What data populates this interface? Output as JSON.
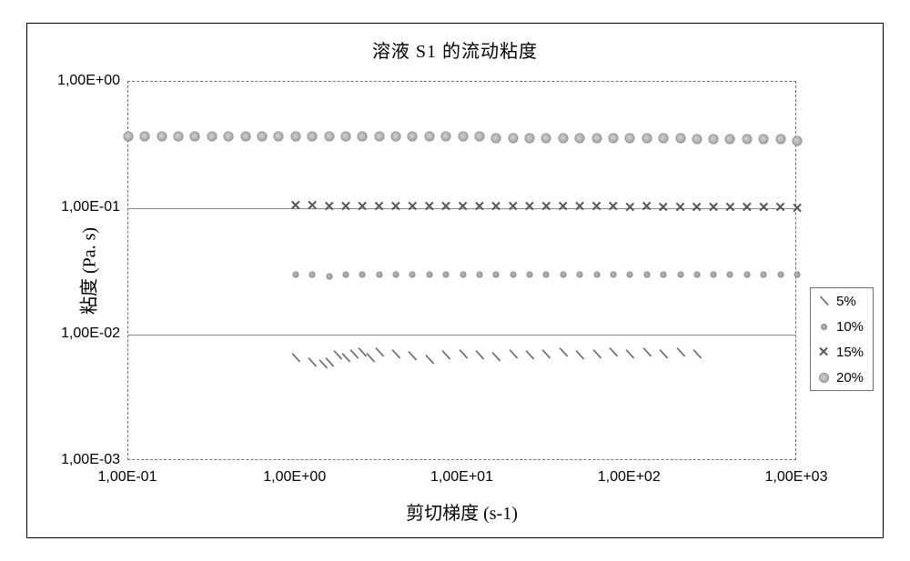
{
  "chart": {
    "type": "scatter",
    "title": "溶液 S1 的流动粘度",
    "title_fontsize": 20,
    "xlabel": "剪切梯度 (s-1)",
    "ylabel": "粘度 (Pa. s)",
    "label_fontsize": 20,
    "tick_fontsize": 16,
    "tick_fontfamily": "Arial",
    "background_color": "#ffffff",
    "frame_border_color": "#000000",
    "plot_border_style": "dashed",
    "plot_border_color": "#6f6f6f",
    "grid_color": "#8a8a8a",
    "x_scale": "log",
    "y_scale": "log",
    "xlim": [
      0.1,
      1000
    ],
    "ylim": [
      0.001,
      1
    ],
    "xticks": [
      {
        "value": 0.1,
        "label": "1,00E-01"
      },
      {
        "value": 1,
        "label": "1,00E+00"
      },
      {
        "value": 10,
        "label": "1,00E+01"
      },
      {
        "value": 100,
        "label": "1,00E+02"
      },
      {
        "value": 1000,
        "label": "1,00E+03"
      }
    ],
    "yticks": [
      {
        "value": 0.001,
        "label": "1,00E-03"
      },
      {
        "value": 0.01,
        "label": "1,00E-02"
      },
      {
        "value": 0.1,
        "label": "1,00E-01"
      },
      {
        "value": 1,
        "label": "1,00E+00"
      }
    ],
    "legend": {
      "position": "right-middle",
      "border_color": "#6f6f6f",
      "items": [
        {
          "key": "s5",
          "label": "5%"
        },
        {
          "key": "s10",
          "label": "10%"
        },
        {
          "key": "s15",
          "label": "15%"
        },
        {
          "key": "s20",
          "label": "20%"
        }
      ]
    },
    "series": {
      "s5": {
        "label": "5%",
        "marker": "tick",
        "marker_color": "#6b6b6b",
        "marker_size": 14,
        "x": [
          1.0,
          1.26,
          1.46,
          1.59,
          1.78,
          2.0,
          2.24,
          2.51,
          2.82,
          3.16,
          3.98,
          5.01,
          6.31,
          7.94,
          10.0,
          12.6,
          15.8,
          20.0,
          25.1,
          31.6,
          39.8,
          50.1,
          63.1,
          79.4,
          100,
          126,
          158,
          200,
          251
        ],
        "y": [
          0.0065,
          0.006,
          0.0058,
          0.006,
          0.0068,
          0.0065,
          0.007,
          0.0072,
          0.0065,
          0.0072,
          0.007,
          0.0067,
          0.0063,
          0.0068,
          0.007,
          0.0068,
          0.0066,
          0.007,
          0.0068,
          0.007,
          0.0072,
          0.0068,
          0.007,
          0.0072,
          0.007,
          0.0072,
          0.007,
          0.0072,
          0.007
        ]
      },
      "s10": {
        "label": "10%",
        "marker": "dot-small",
        "marker_color": "#909090",
        "marker_size": 7,
        "x": [
          1.0,
          1.26,
          1.59,
          2.0,
          2.51,
          3.16,
          3.98,
          5.01,
          6.31,
          7.94,
          10.0,
          12.6,
          15.8,
          20.0,
          25.1,
          31.6,
          39.8,
          50.1,
          63.1,
          79.4,
          100,
          126,
          158,
          200,
          251,
          316,
          398,
          501,
          631,
          794,
          1000
        ],
        "y": [
          0.03,
          0.03,
          0.029,
          0.03,
          0.03,
          0.03,
          0.03,
          0.03,
          0.03,
          0.03,
          0.03,
          0.03,
          0.03,
          0.03,
          0.03,
          0.03,
          0.03,
          0.03,
          0.03,
          0.03,
          0.03,
          0.03,
          0.03,
          0.03,
          0.03,
          0.03,
          0.03,
          0.03,
          0.03,
          0.03,
          0.03
        ]
      },
      "s15": {
        "label": "15%",
        "marker": "x",
        "marker_color": "#585858",
        "marker_size": 15,
        "x": [
          1.0,
          1.26,
          1.59,
          2.0,
          2.51,
          3.16,
          3.98,
          5.01,
          6.31,
          7.94,
          10.0,
          12.6,
          15.8,
          20.0,
          25.1,
          31.6,
          39.8,
          50.1,
          63.1,
          79.4,
          100,
          126,
          158,
          200,
          251,
          316,
          398,
          501,
          631,
          794,
          1000
        ],
        "y": [
          0.105,
          0.105,
          0.103,
          0.104,
          0.104,
          0.103,
          0.104,
          0.103,
          0.104,
          0.103,
          0.103,
          0.104,
          0.103,
          0.103,
          0.103,
          0.103,
          0.103,
          0.103,
          0.103,
          0.103,
          0.102,
          0.103,
          0.102,
          0.102,
          0.102,
          0.102,
          0.102,
          0.102,
          0.101,
          0.101,
          0.1
        ]
      },
      "s20": {
        "label": "20%",
        "marker": "dot-large",
        "marker_color": "#a4a4a4",
        "marker_size": 11,
        "x": [
          0.1,
          0.126,
          0.159,
          0.2,
          0.251,
          0.316,
          0.398,
          0.501,
          0.631,
          0.794,
          1.0,
          1.26,
          1.59,
          2.0,
          2.51,
          3.16,
          3.98,
          5.01,
          6.31,
          7.94,
          10.0,
          12.6,
          15.8,
          20.0,
          25.1,
          31.6,
          39.8,
          50.1,
          63.1,
          79.4,
          100,
          126,
          158,
          200,
          251,
          316,
          398,
          501,
          631,
          794,
          1000
        ],
        "y": [
          0.37,
          0.37,
          0.37,
          0.37,
          0.37,
          0.37,
          0.37,
          0.37,
          0.37,
          0.37,
          0.37,
          0.37,
          0.37,
          0.37,
          0.37,
          0.37,
          0.37,
          0.37,
          0.37,
          0.37,
          0.37,
          0.37,
          0.36,
          0.36,
          0.36,
          0.36,
          0.36,
          0.36,
          0.36,
          0.36,
          0.36,
          0.36,
          0.36,
          0.36,
          0.35,
          0.35,
          0.35,
          0.35,
          0.35,
          0.35,
          0.34
        ]
      }
    }
  }
}
